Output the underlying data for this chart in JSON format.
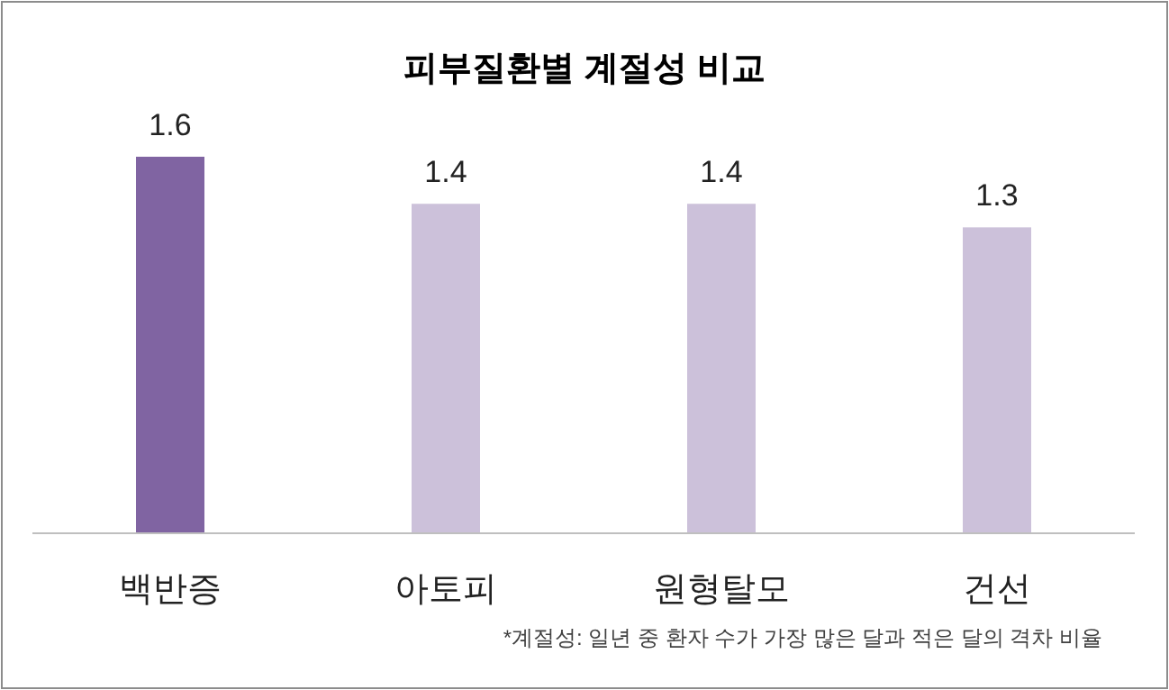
{
  "chart_data": {
    "type": "bar",
    "title": "피부질환별 계절성 비교",
    "categories": [
      "백반증",
      "아토피",
      "원형탈모",
      "건선"
    ],
    "values": [
      1.6,
      1.4,
      1.4,
      1.3
    ],
    "colors": [
      "#8064a2",
      "#ccc1da",
      "#ccc1da",
      "#ccc1da"
    ],
    "data_labels": true,
    "annotations": [
      "*계절성: 일년 중 환자 수가 가장 많은 달과 적은 달의 격차 비율"
    ]
  }
}
